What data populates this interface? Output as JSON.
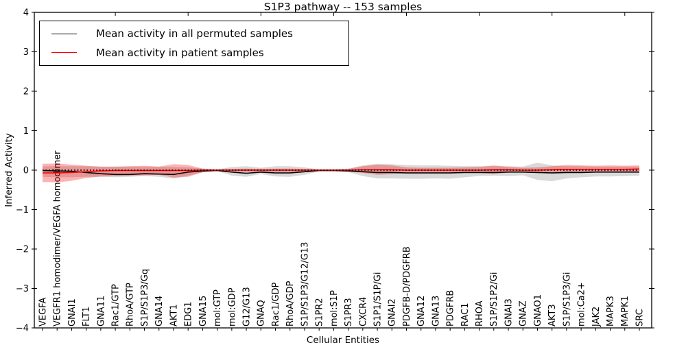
{
  "title": "S1P3 pathway -- 153 samples",
  "axes": {
    "x_label": "Cellular Entities",
    "y_label": "Inferred Activity"
  },
  "legend": {
    "items": [
      {
        "label": "Mean activity in all permuted samples",
        "color": "#000000"
      },
      {
        "label": "Mean activity in patient samples",
        "color": "#ff0000"
      }
    ]
  },
  "colors": {
    "permuted_line": "#000000",
    "patient_line": "#ff0000",
    "permuted_band_fill": "#000000",
    "permuted_band_alpha": 0.15,
    "patient_band_fill": "#ff0000",
    "patient_band_alpha": 0.3,
    "frame": "#000000",
    "background": "#ffffff"
  },
  "chart_data": {
    "type": "line",
    "title": "S1P3 pathway -- 153 samples",
    "xlabel": "Cellular Entities",
    "ylabel": "Inferred Activity",
    "ylim": [
      -4,
      4
    ],
    "yticks": [
      4,
      3,
      2,
      1,
      0,
      -1,
      -2,
      -3,
      -4
    ],
    "grid": false,
    "legend_position": "upper left",
    "zero_reference_line": {
      "y": 0,
      "style": "dotted",
      "color": "#000000"
    },
    "categories": [
      "VEGFA",
      "VEGFR1 homodimer/VEGFA homodimer",
      "GNAI1",
      "FLT1",
      "GNA11",
      "Rac1/GTP",
      "RhoA/GTP",
      "S1P/S1P3/Gq",
      "GNA14",
      "AKT1",
      "EDG1",
      "GNA15",
      "mol:GTP",
      "mol:GDP",
      "G12/G13",
      "GNAQ",
      "Rac1/GDP",
      "RhoA/GDP",
      "S1P/S1P3/G12/G13",
      "S1PR2",
      "mol:S1P",
      "S1PR3",
      "CXCR4",
      "S1P1/S1P/Gi",
      "GNAI2",
      "PDGFB-D/PDGFRB",
      "GNA12",
      "GNA13",
      "PDGFRB",
      "RAC1",
      "RHOA",
      "S1P/S1P2/Gi",
      "GNAI3",
      "GNAZ",
      "GNAO1",
      "AKT3",
      "S1P/S1P3/Gi",
      "mol:Ca2+",
      "JAK2",
      "MAPK3",
      "MAPK1",
      "SRC"
    ],
    "series": [
      {
        "name": "Mean activity in all permuted samples",
        "color": "#000000",
        "line_style": "solid",
        "values": [
          -0.01,
          -0.02,
          -0.03,
          -0.06,
          -0.09,
          -0.11,
          -0.11,
          -0.09,
          -0.1,
          -0.11,
          -0.05,
          -0.02,
          -0.01,
          -0.05,
          -0.08,
          -0.05,
          -0.07,
          -0.07,
          -0.04,
          -0.01,
          -0.01,
          -0.02,
          -0.04,
          -0.06,
          -0.06,
          -0.07,
          -0.07,
          -0.07,
          -0.07,
          -0.06,
          -0.06,
          -0.06,
          -0.05,
          -0.05,
          -0.06,
          -0.07,
          -0.06,
          -0.06,
          -0.05,
          -0.05,
          -0.05,
          -0.05
        ],
        "band_lower": [
          -0.17,
          -0.18,
          -0.18,
          -0.17,
          -0.17,
          -0.18,
          -0.17,
          -0.15,
          -0.17,
          -0.21,
          -0.14,
          -0.06,
          -0.02,
          -0.14,
          -0.17,
          -0.1,
          -0.16,
          -0.17,
          -0.12,
          -0.03,
          -0.03,
          -0.05,
          -0.15,
          -0.21,
          -0.21,
          -0.22,
          -0.22,
          -0.21,
          -0.22,
          -0.18,
          -0.15,
          -0.14,
          -0.15,
          -0.13,
          -0.25,
          -0.28,
          -0.21,
          -0.18,
          -0.16,
          -0.16,
          -0.15,
          -0.14
        ],
        "band_upper": [
          0.1,
          0.1,
          0.1,
          0.1,
          0.09,
          0.09,
          0.09,
          0.08,
          0.09,
          0.08,
          0.07,
          0.04,
          0.02,
          0.08,
          0.1,
          0.06,
          0.1,
          0.1,
          0.07,
          0.02,
          0.02,
          0.04,
          0.12,
          0.16,
          0.15,
          0.13,
          0.12,
          0.12,
          0.11,
          0.1,
          0.1,
          0.1,
          0.1,
          0.09,
          0.19,
          0.12,
          0.1,
          0.1,
          0.09,
          0.09,
          0.09,
          0.09
        ]
      },
      {
        "name": "Mean activity in patient samples",
        "color": "#ff0000",
        "line_style": "solid",
        "values": [
          -0.07,
          -0.07,
          -0.06,
          -0.04,
          -0.02,
          -0.01,
          -0.01,
          -0.01,
          -0.01,
          -0.01,
          -0.01,
          0,
          0,
          0,
          0,
          0,
          0,
          0,
          0,
          0,
          0,
          0,
          0.01,
          0.01,
          0.01,
          0,
          0,
          0,
          0,
          0,
          0,
          0.01,
          0.01,
          0,
          0,
          0.01,
          0.02,
          0.02,
          0.02,
          0.02,
          0.02,
          0.03
        ],
        "band_lower": [
          -0.3,
          -0.31,
          -0.27,
          -0.2,
          -0.16,
          -0.15,
          -0.14,
          -0.13,
          -0.12,
          -0.19,
          -0.17,
          -0.05,
          -0.02,
          -0.04,
          -0.05,
          -0.04,
          -0.05,
          -0.05,
          -0.04,
          -0.02,
          -0.02,
          -0.03,
          -0.07,
          -0.12,
          -0.1,
          -0.07,
          -0.06,
          -0.06,
          -0.06,
          -0.07,
          -0.07,
          -0.1,
          -0.06,
          -0.05,
          -0.06,
          -0.07,
          -0.07,
          -0.06,
          -0.06,
          -0.06,
          -0.06,
          -0.05
        ],
        "band_upper": [
          0.16,
          0.17,
          0.14,
          0.11,
          0.09,
          0.09,
          0.1,
          0.11,
          0.09,
          0.15,
          0.13,
          0.04,
          0.02,
          0.03,
          0.04,
          0.03,
          0.04,
          0.04,
          0.03,
          0.02,
          0.02,
          0.03,
          0.1,
          0.14,
          0.12,
          0.07,
          0.06,
          0.06,
          0.06,
          0.07,
          0.08,
          0.12,
          0.08,
          0.06,
          0.07,
          0.1,
          0.13,
          0.12,
          0.11,
          0.12,
          0.11,
          0.12
        ]
      }
    ]
  }
}
